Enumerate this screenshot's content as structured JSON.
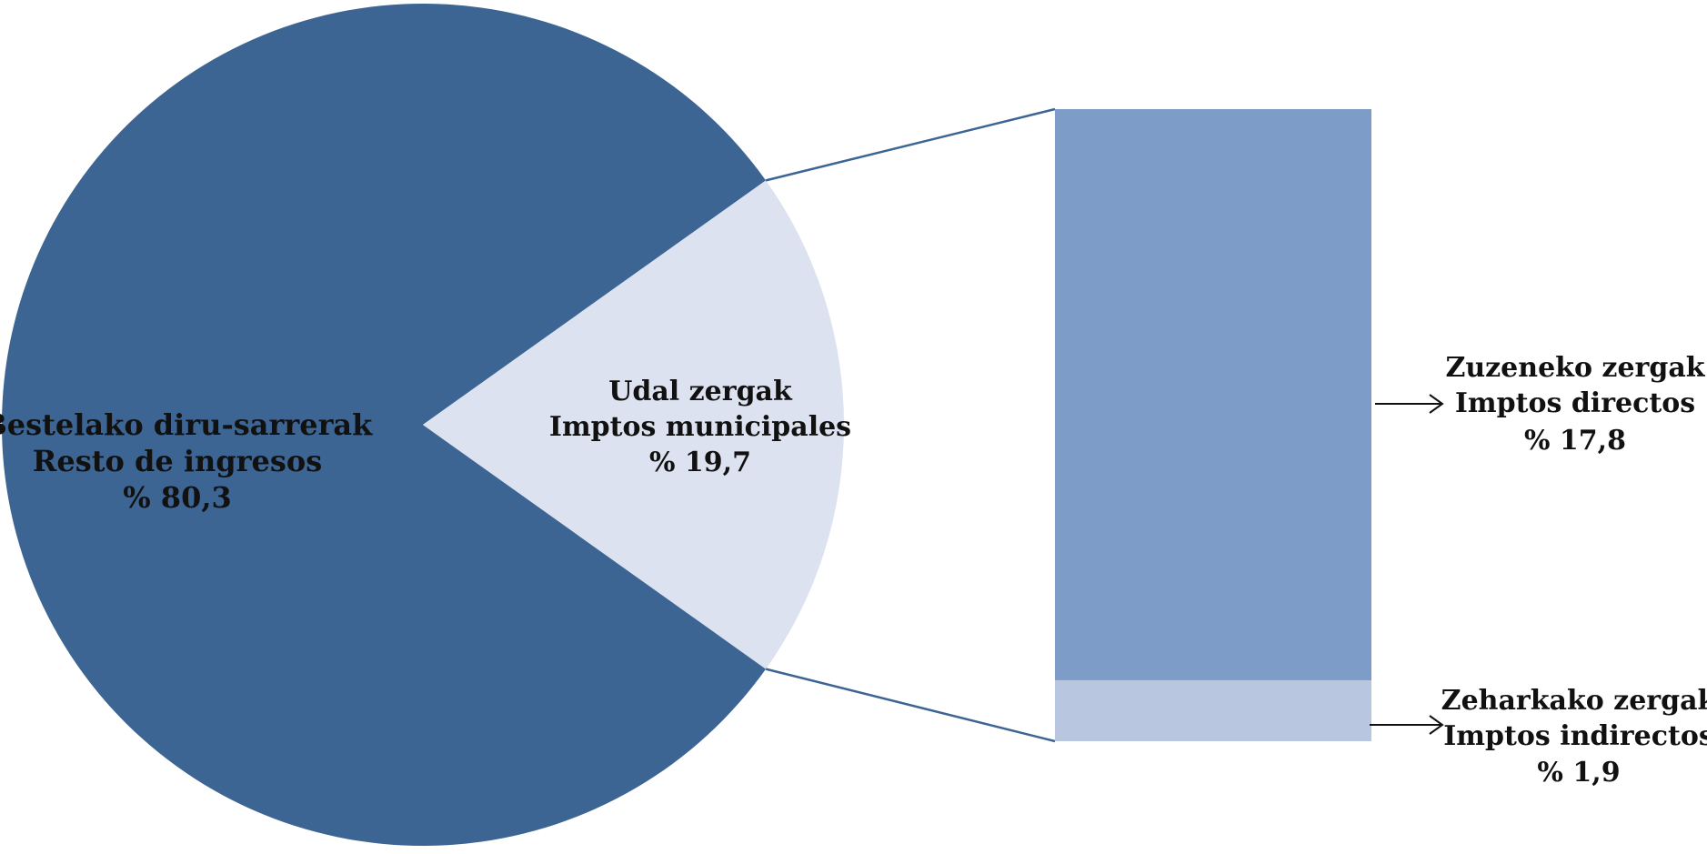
{
  "chart_data": {
    "type": "bar-of-pie",
    "pie": {
      "slices": [
        {
          "label_eu": "Bestelako diru-sarrerak",
          "label_es": "Resto de ingresos",
          "value_text": "% 80,3",
          "value": 80.3,
          "color": "#3d6594"
        },
        {
          "label_eu": "Udal zergak",
          "label_es": "Imptos municipales",
          "value_text": "% 19,7",
          "value": 19.7,
          "color": "#dce2ef"
        }
      ]
    },
    "bar": {
      "segments": [
        {
          "label_eu": "Zuzeneko zergak",
          "label_es": "Imptos directos",
          "value_text": "% 17,8",
          "value": 17.8,
          "color": "#7e9cc8"
        },
        {
          "label_eu": "Zeharkako zergak",
          "label_es": "Imptos indirectos",
          "value_text": "% 1,9",
          "value": 1.9,
          "color": "#b8c6e0"
        }
      ]
    },
    "connector_color": "#3d6594"
  }
}
